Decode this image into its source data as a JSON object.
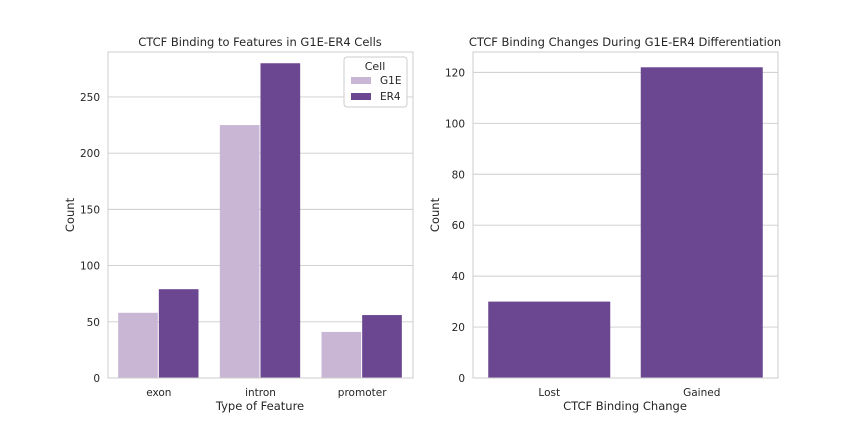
{
  "chart_data": [
    {
      "type": "bar",
      "title": "CTCF Binding to Features in G1E-ER4 Cells",
      "xlabel": "Type of Feature",
      "ylabel": "Count",
      "categories": [
        "exon",
        "intron",
        "promoter"
      ],
      "series": [
        {
          "name": "G1E",
          "values": [
            58,
            225,
            41
          ],
          "color": "#c9b6d5"
        },
        {
          "name": "ER4",
          "values": [
            79,
            280,
            56
          ],
          "color": "#6a4790"
        }
      ],
      "ylim": [
        0,
        290
      ],
      "yticks": [
        0,
        50,
        100,
        150,
        200,
        250
      ],
      "grid": true,
      "legend": {
        "title": "Cell",
        "placement": "top-right"
      }
    },
    {
      "type": "bar",
      "title": "CTCF Binding Changes During G1E-ER4 Differentiation",
      "xlabel": "CTCF Binding Change",
      "ylabel": "Count",
      "categories": [
        "Lost",
        "Gained"
      ],
      "values": [
        30,
        122
      ],
      "color": "#6a4790",
      "ylim": [
        0,
        128
      ],
      "yticks": [
        0,
        20,
        40,
        60,
        80,
        100,
        120
      ],
      "grid": true
    }
  ]
}
